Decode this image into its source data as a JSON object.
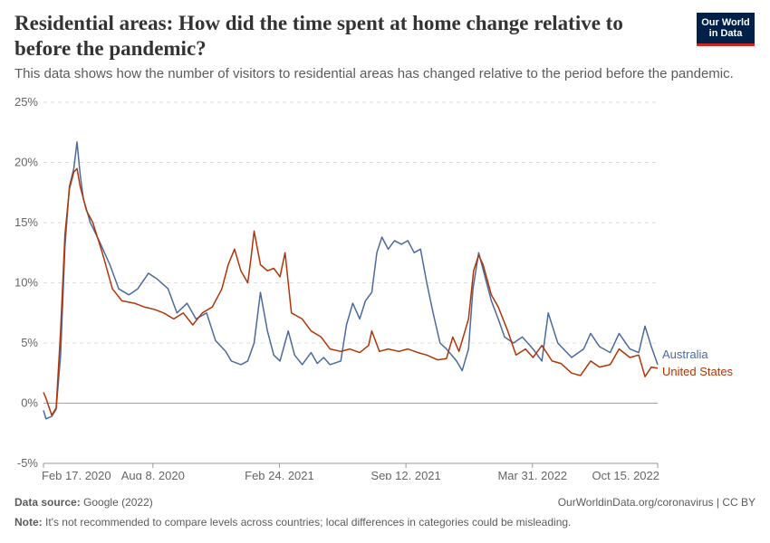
{
  "header": {
    "title": "Residential areas: How did the time spent at home change relative to before the pandemic?",
    "subtitle": "This data shows how the number of visitors to residential areas has changed relative to the period before the pandemic.",
    "logo_line1": "Our World",
    "logo_line2": "in Data"
  },
  "footer": {
    "source_label": "Data source:",
    "source_value": "Google (2022)",
    "url_text": "OurWorldinData.org/coronavirus | CC BY",
    "note_label": "Note:",
    "note_text": "It's not recommended to compare levels across countries; local differences in categories could be misleading."
  },
  "colors": {
    "australia": "#4c6a9c",
    "united_states": "#b13507",
    "zero_line": "#a1a1a1",
    "gridline": "#dddddd",
    "axis_text": "#666666"
  },
  "chart_data": {
    "type": "line",
    "title": "Residential areas: How did the time spent at home change relative to before the pandemic?",
    "x_start": "2020-02-17",
    "x_end": "2022-10-15",
    "ylim": [
      -5,
      25
    ],
    "y_ticks": [
      -5,
      0,
      5,
      10,
      15,
      20,
      25
    ],
    "y_tick_labels": [
      "-5%",
      "0%",
      "5%",
      "10%",
      "15%",
      "20%",
      "25%"
    ],
    "x_tick_labels": [
      "Feb 17, 2020",
      "Aug 8, 2020",
      "Feb 24, 2021",
      "Sep 12, 2021",
      "Mar 31, 2022",
      "Oct 15, 2022"
    ],
    "x_tick_dates": [
      "2020-02-17",
      "2020-08-08",
      "2021-02-24",
      "2021-09-12",
      "2022-03-31",
      "2022-10-15"
    ],
    "grid": "horizontal dashed",
    "legend": "right, at line ends",
    "series": [
      {
        "name": "Australia",
        "color": "#4c6a9c",
        "points": [
          [
            "2020-02-17",
            -0.6
          ],
          [
            "2020-02-21",
            -1.3
          ],
          [
            "2020-03-01",
            -1.1
          ],
          [
            "2020-03-08",
            -0.5
          ],
          [
            "2020-03-15",
            4
          ],
          [
            "2020-03-22",
            13
          ],
          [
            "2020-03-29",
            18
          ],
          [
            "2020-04-05",
            19.5
          ],
          [
            "2020-04-10",
            21.7
          ],
          [
            "2020-04-15",
            19
          ],
          [
            "2020-04-20",
            17
          ],
          [
            "2020-05-01",
            15
          ],
          [
            "2020-05-15",
            13.5
          ],
          [
            "2020-06-01",
            11.5
          ],
          [
            "2020-06-15",
            9.5
          ],
          [
            "2020-07-01",
            9
          ],
          [
            "2020-07-15",
            9.5
          ],
          [
            "2020-08-01",
            10.8
          ],
          [
            "2020-08-15",
            10.3
          ],
          [
            "2020-09-01",
            9.5
          ],
          [
            "2020-09-15",
            7.5
          ],
          [
            "2020-10-01",
            8.3
          ],
          [
            "2020-10-15",
            7
          ],
          [
            "2020-11-01",
            7.5
          ],
          [
            "2020-11-15",
            5.2
          ],
          [
            "2020-12-01",
            4.3
          ],
          [
            "2020-12-10",
            3.5
          ],
          [
            "2020-12-25",
            3.2
          ],
          [
            "2021-01-05",
            3.5
          ],
          [
            "2021-01-15",
            5
          ],
          [
            "2021-01-25",
            9.2
          ],
          [
            "2021-02-05",
            6
          ],
          [
            "2021-02-15",
            4
          ],
          [
            "2021-02-25",
            3.5
          ],
          [
            "2021-03-10",
            6
          ],
          [
            "2021-03-20",
            4
          ],
          [
            "2021-04-01",
            3.2
          ],
          [
            "2021-04-15",
            4.2
          ],
          [
            "2021-04-25",
            3.3
          ],
          [
            "2021-05-05",
            3.8
          ],
          [
            "2021-05-15",
            3.2
          ],
          [
            "2021-06-01",
            3.5
          ],
          [
            "2021-06-10",
            6.5
          ],
          [
            "2021-06-20",
            8.3
          ],
          [
            "2021-07-01",
            7
          ],
          [
            "2021-07-10",
            8.5
          ],
          [
            "2021-07-20",
            9.2
          ],
          [
            "2021-07-28",
            12.5
          ],
          [
            "2021-08-05",
            13.8
          ],
          [
            "2021-08-15",
            12.8
          ],
          [
            "2021-08-25",
            13.5
          ],
          [
            "2021-09-05",
            13.2
          ],
          [
            "2021-09-15",
            13.5
          ],
          [
            "2021-09-25",
            12.5
          ],
          [
            "2021-10-05",
            12.8
          ],
          [
            "2021-10-15",
            10
          ],
          [
            "2021-10-25",
            7.5
          ],
          [
            "2021-11-05",
            5
          ],
          [
            "2021-11-15",
            4.5
          ],
          [
            "2021-12-01",
            3.5
          ],
          [
            "2021-12-10",
            2.7
          ],
          [
            "2021-12-20",
            4.5
          ],
          [
            "2021-12-27",
            9.5
          ],
          [
            "2022-01-05",
            12.5
          ],
          [
            "2022-01-15",
            10.5
          ],
          [
            "2022-01-25",
            8.5
          ],
          [
            "2022-02-05",
            7
          ],
          [
            "2022-02-15",
            5.5
          ],
          [
            "2022-03-01",
            5
          ],
          [
            "2022-03-15",
            5.5
          ],
          [
            "2022-04-01",
            4.5
          ],
          [
            "2022-04-15",
            3.5
          ],
          [
            "2022-04-25",
            7.5
          ],
          [
            "2022-05-10",
            5
          ],
          [
            "2022-06-01",
            3.8
          ],
          [
            "2022-06-20",
            4.5
          ],
          [
            "2022-07-01",
            5.8
          ],
          [
            "2022-07-15",
            4.7
          ],
          [
            "2022-08-01",
            4.2
          ],
          [
            "2022-08-15",
            5.8
          ],
          [
            "2022-09-01",
            4.5
          ],
          [
            "2022-09-15",
            4.2
          ],
          [
            "2022-09-25",
            6.4
          ],
          [
            "2022-10-05",
            4.7
          ],
          [
            "2022-10-15",
            3.2
          ]
        ]
      },
      {
        "name": "United States",
        "color": "#b13507",
        "points": [
          [
            "2020-02-17",
            0.9
          ],
          [
            "2020-02-21",
            0.4
          ],
          [
            "2020-03-01",
            -1
          ],
          [
            "2020-03-08",
            -0.4
          ],
          [
            "2020-03-15",
            6
          ],
          [
            "2020-03-22",
            14
          ],
          [
            "2020-03-29",
            17.8
          ],
          [
            "2020-04-05",
            19.2
          ],
          [
            "2020-04-10",
            19.5
          ],
          [
            "2020-04-15",
            18
          ],
          [
            "2020-04-25",
            16
          ],
          [
            "2020-05-05",
            15
          ],
          [
            "2020-05-20",
            12.5
          ],
          [
            "2020-06-05",
            9.5
          ],
          [
            "2020-06-20",
            8.5
          ],
          [
            "2020-07-10",
            8.3
          ],
          [
            "2020-07-25",
            8
          ],
          [
            "2020-08-10",
            7.8
          ],
          [
            "2020-08-25",
            7.5
          ],
          [
            "2020-09-10",
            7
          ],
          [
            "2020-09-25",
            7.5
          ],
          [
            "2020-10-10",
            6.5
          ],
          [
            "2020-10-25",
            7.5
          ],
          [
            "2020-11-10",
            8
          ],
          [
            "2020-11-25",
            9.5
          ],
          [
            "2020-12-05",
            11.5
          ],
          [
            "2020-12-15",
            12.8
          ],
          [
            "2020-12-25",
            11
          ],
          [
            "2021-01-05",
            10
          ],
          [
            "2021-01-10",
            12
          ],
          [
            "2021-01-15",
            14.3
          ],
          [
            "2021-01-25",
            11.5
          ],
          [
            "2021-02-05",
            11
          ],
          [
            "2021-02-15",
            11.2
          ],
          [
            "2021-02-25",
            10.5
          ],
          [
            "2021-03-05",
            12.5
          ],
          [
            "2021-03-15",
            7.5
          ],
          [
            "2021-04-01",
            7
          ],
          [
            "2021-04-15",
            6
          ],
          [
            "2021-05-01",
            5.5
          ],
          [
            "2021-05-15",
            4.5
          ],
          [
            "2021-06-01",
            4.3
          ],
          [
            "2021-06-15",
            4.5
          ],
          [
            "2021-07-01",
            4.2
          ],
          [
            "2021-07-15",
            4.8
          ],
          [
            "2021-07-20",
            6
          ],
          [
            "2021-08-01",
            4.3
          ],
          [
            "2021-08-15",
            4.5
          ],
          [
            "2021-09-01",
            4.3
          ],
          [
            "2021-09-15",
            4.5
          ],
          [
            "2021-10-01",
            4.2
          ],
          [
            "2021-10-15",
            4
          ],
          [
            "2021-11-01",
            3.6
          ],
          [
            "2021-11-15",
            3.7
          ],
          [
            "2021-11-25",
            5.5
          ],
          [
            "2021-12-05",
            4.3
          ],
          [
            "2021-12-20",
            7
          ],
          [
            "2021-12-28",
            11
          ],
          [
            "2022-01-05",
            12.3
          ],
          [
            "2022-01-12",
            11.5
          ],
          [
            "2022-01-25",
            9
          ],
          [
            "2022-02-05",
            8
          ],
          [
            "2022-02-20",
            6
          ],
          [
            "2022-03-05",
            4
          ],
          [
            "2022-03-20",
            4.5
          ],
          [
            "2022-04-01",
            3.8
          ],
          [
            "2022-04-15",
            4.8
          ],
          [
            "2022-05-01",
            3.5
          ],
          [
            "2022-05-15",
            3.3
          ],
          [
            "2022-06-01",
            2.5
          ],
          [
            "2022-06-15",
            2.3
          ],
          [
            "2022-07-01",
            3.5
          ],
          [
            "2022-07-15",
            3
          ],
          [
            "2022-08-01",
            3.2
          ],
          [
            "2022-08-15",
            4.5
          ],
          [
            "2022-09-01",
            3.8
          ],
          [
            "2022-09-15",
            4
          ],
          [
            "2022-09-25",
            2.2
          ],
          [
            "2022-10-05",
            3
          ],
          [
            "2022-10-15",
            2.9
          ]
        ]
      }
    ]
  }
}
